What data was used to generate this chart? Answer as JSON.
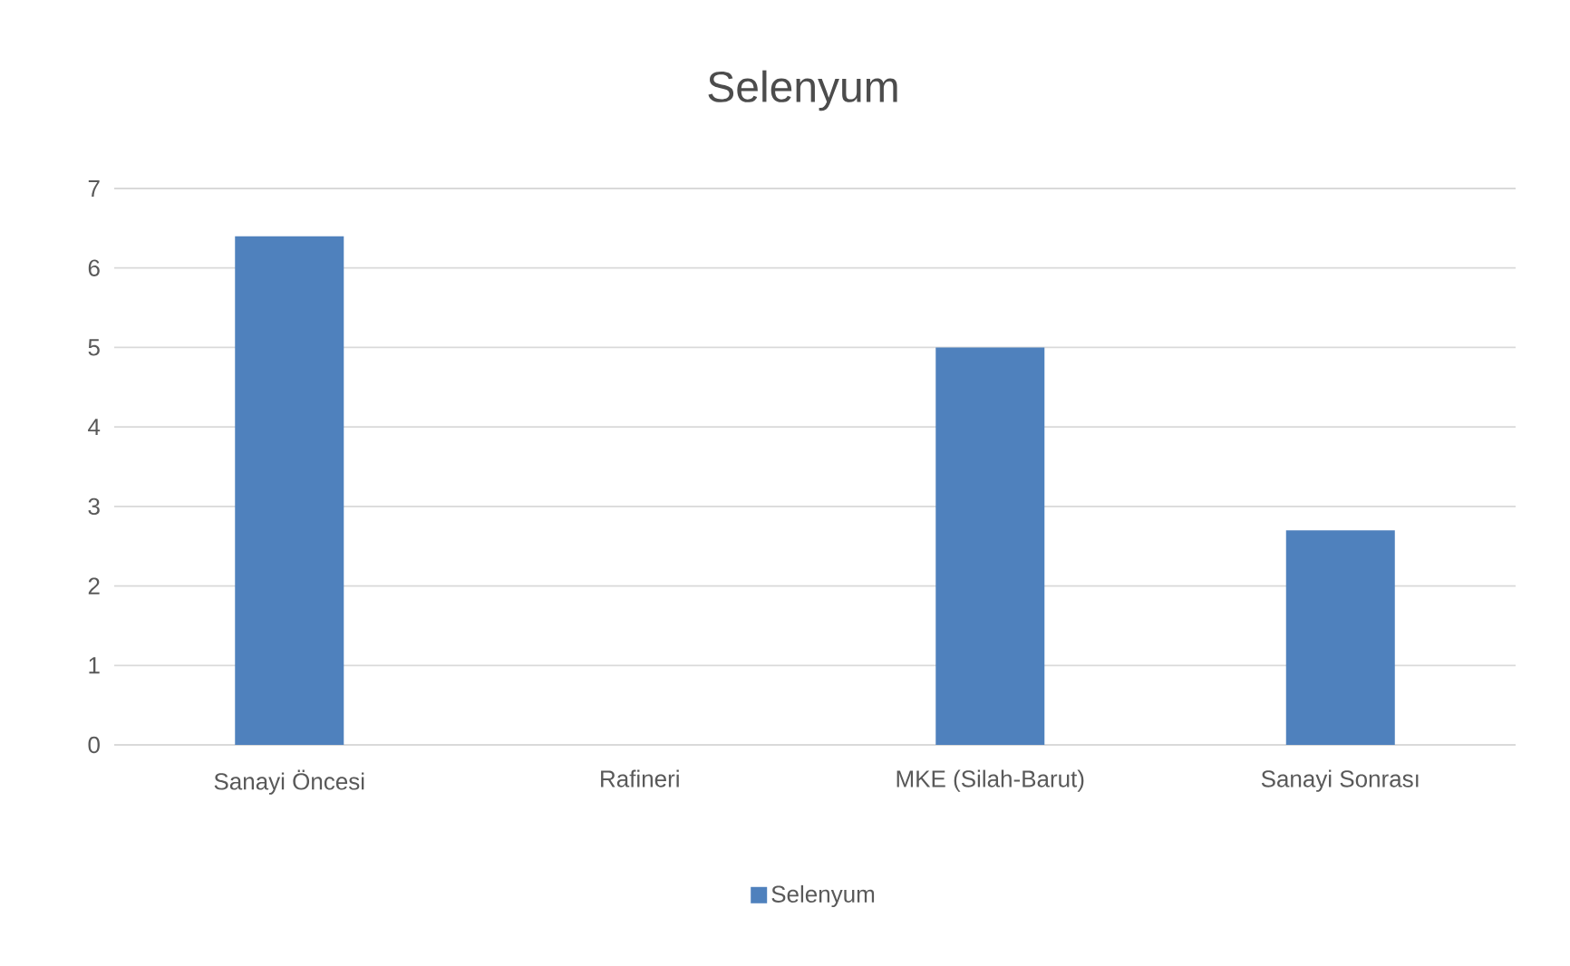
{
  "chart_data": {
    "type": "bar",
    "title": "Selenyum",
    "categories": [
      "Sanayi Öncesi",
      "Rafineri",
      "MKE (Silah-Barut)",
      "Sanayi Sonrası"
    ],
    "series": [
      {
        "name": "Selenyum",
        "color": "#4f81bd",
        "values": [
          6.4,
          0,
          5,
          2.7
        ]
      }
    ],
    "ylim": [
      0,
      7
    ],
    "yticks": [
      0,
      1,
      2,
      3,
      4,
      5,
      6,
      7
    ],
    "grid": "y",
    "legend": "bottom"
  }
}
